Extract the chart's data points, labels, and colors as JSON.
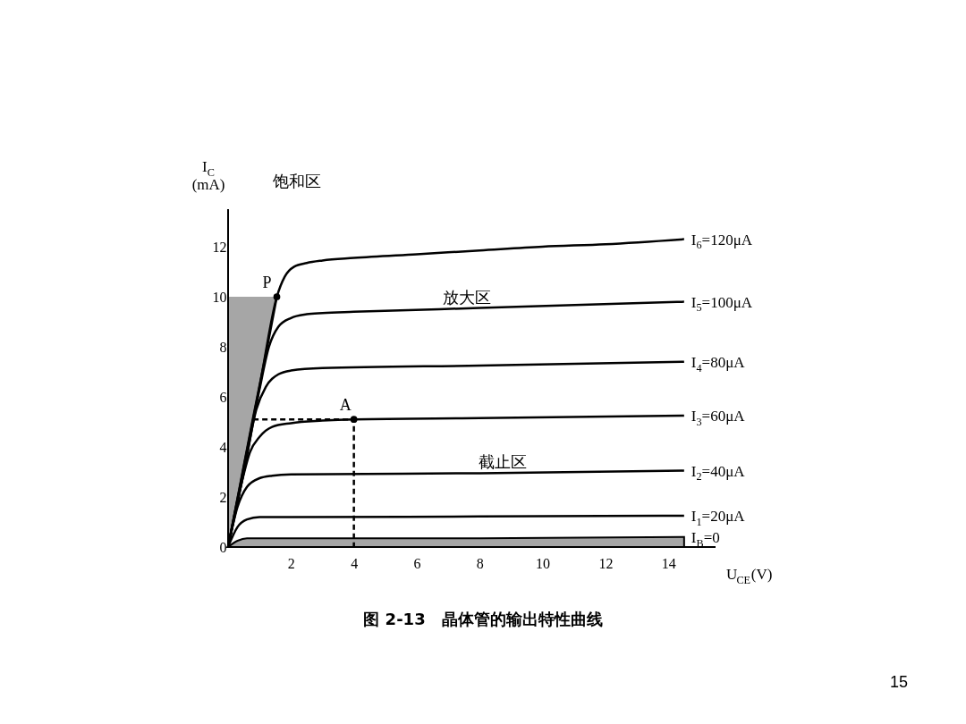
{
  "chart_data": {
    "type": "line",
    "xlabel": "U$_{CE}$(V)",
    "ylabel": "I$_{C}$\n(mA)",
    "xlim": [
      0,
      15.5
    ],
    "ylim": [
      0,
      13.5
    ],
    "xticks": [
      2,
      4,
      6,
      8,
      10,
      12,
      14
    ],
    "yticks": [
      0,
      2,
      4,
      6,
      8,
      10,
      12
    ],
    "grid": false,
    "marker": "none",
    "line_style": "solid",
    "series": [
      {
        "name": "I$_{6}$=120μA",
        "color": "#000000",
        "x": [
          0,
          0.5,
          1,
          1.55,
          1.8,
          2.1,
          2.5,
          3,
          4,
          6,
          8,
          10,
          12,
          14.5
        ],
        "values": [
          0,
          3.2,
          6.4,
          10,
          10.8,
          11.2,
          11.35,
          11.45,
          11.55,
          11.7,
          11.85,
          12.0,
          12.1,
          12.3
        ]
      },
      {
        "name": "I$_{5}$=100μA",
        "color": "#000000",
        "x": [
          0,
          0.5,
          1,
          1.3,
          1.6,
          2,
          2.5,
          3,
          4,
          8,
          14.5
        ],
        "values": [
          0,
          3.0,
          6.3,
          8.0,
          8.8,
          9.15,
          9.3,
          9.35,
          9.4,
          9.55,
          9.8
        ]
      },
      {
        "name": "I$_{4}$=80μA",
        "color": "#000000",
        "x": [
          0,
          0.5,
          0.9,
          1.2,
          1.6,
          2,
          3,
          8,
          14.5
        ],
        "values": [
          0,
          3.0,
          5.5,
          6.4,
          6.9,
          7.05,
          7.15,
          7.25,
          7.4
        ]
      },
      {
        "name": "I$_{3}$=60μA",
        "color": "#000000",
        "x": [
          0,
          0.4,
          0.7,
          1,
          1.4,
          2,
          3,
          4,
          8,
          14.5
        ],
        "values": [
          0,
          2.4,
          3.8,
          4.4,
          4.8,
          4.95,
          5.05,
          5.1,
          5.15,
          5.25
        ]
      },
      {
        "name": "I$_{2}$=40μA",
        "color": "#000000",
        "x": [
          0,
          0.3,
          0.6,
          1,
          1.4,
          2,
          8,
          14.5
        ],
        "values": [
          0,
          1.6,
          2.4,
          2.75,
          2.85,
          2.9,
          2.95,
          3.05
        ]
      },
      {
        "name": "I$_{1}$=20μA",
        "color": "#000000",
        "x": [
          0,
          0.3,
          0.6,
          1,
          2,
          8,
          14.5
        ],
        "values": [
          0,
          0.8,
          1.1,
          1.2,
          1.2,
          1.22,
          1.25
        ]
      },
      {
        "name": "I$_{B}$=0",
        "type": "area",
        "color": "#000000",
        "x": [
          0,
          0.3,
          0.6,
          1,
          8,
          14.5
        ],
        "values": [
          0,
          0.25,
          0.35,
          0.35,
          0.35,
          0.4
        ]
      },
      {
        "type": "line",
        "color": "#000000",
        "x": [
          0,
          0.4,
          0.8,
          1.2,
          1.55
        ],
        "values": [
          0,
          2.6,
          5.2,
          7.7,
          10
        ],
        "lower": [
          0,
          2.6,
          5.2,
          7.7,
          10
        ],
        "upper": [
          10,
          10,
          10,
          10,
          10
        ]
      },
      {
        "type": "line",
        "color": "#000000",
        "line_style": "dashed",
        "x": [
          0.8,
          4,
          4
        ],
        "values": [
          5.1,
          5.1,
          0
        ]
      },
      {
        "type": "scatter",
        "marker": "circle",
        "color": "#000000",
        "x": [
          1.55,
          4
        ],
        "values": [
          10,
          5.1
        ]
      }
    ],
    "annotations": [
      {
        "text": "P",
        "x": 1.55,
        "y": 10
      },
      {
        "text": "A",
        "x": 4,
        "y": 5.1
      },
      "饱和区",
      "放大区",
      "截止区",
      "图 2-13　晶体管的输出特性曲线",
      "15"
    ]
  }
}
